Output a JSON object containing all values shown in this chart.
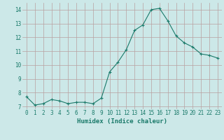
{
  "x": [
    0,
    1,
    2,
    3,
    4,
    5,
    6,
    7,
    8,
    9,
    10,
    11,
    12,
    13,
    14,
    15,
    16,
    17,
    18,
    19,
    20,
    21,
    22,
    23
  ],
  "y": [
    7.7,
    7.1,
    7.2,
    7.5,
    7.4,
    7.2,
    7.3,
    7.3,
    7.2,
    7.6,
    9.5,
    10.2,
    11.1,
    12.5,
    12.9,
    14.0,
    14.1,
    13.2,
    12.1,
    11.6,
    11.3,
    10.8,
    10.7,
    10.5
  ],
  "line_color": "#1a7a6a",
  "marker": "+",
  "marker_size": 3,
  "bg_color": "#cce8e8",
  "grid_color": "#b8a0a0",
  "xlabel": "Humidex (Indice chaleur)",
  "ylim": [
    6.8,
    14.5
  ],
  "xlim": [
    -0.5,
    23.5
  ],
  "yticks": [
    7,
    8,
    9,
    10,
    11,
    12,
    13,
    14
  ],
  "xticks": [
    0,
    1,
    2,
    3,
    4,
    5,
    6,
    7,
    8,
    9,
    10,
    11,
    12,
    13,
    14,
    15,
    16,
    17,
    18,
    19,
    20,
    21,
    22,
    23
  ],
  "label_fontsize": 6.5,
  "tick_fontsize": 5.5
}
